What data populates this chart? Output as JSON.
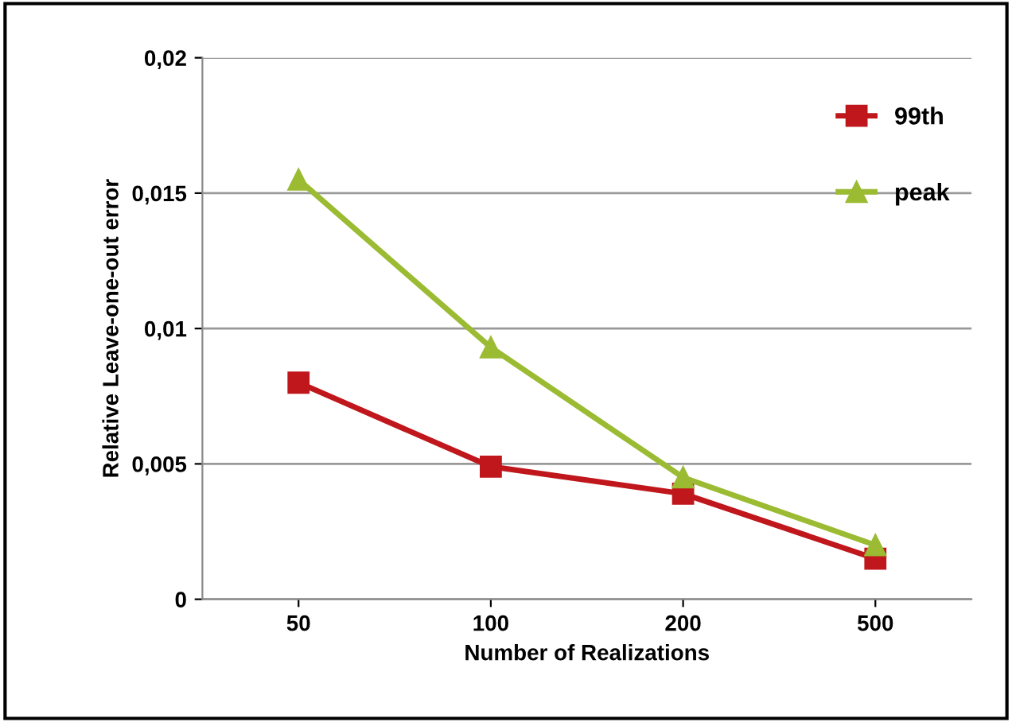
{
  "chart_data": {
    "type": "line",
    "xlabel": "Number of Realizations",
    "ylabel": "Relative Leave-one-out error",
    "categories": [
      "50",
      "100",
      "200",
      "500"
    ],
    "series": [
      {
        "name": "99th",
        "color": "#c0171c",
        "marker": "square",
        "values": [
          0.008,
          0.0049,
          0.0039,
          0.0015
        ]
      },
      {
        "name": "peak",
        "color": "#9bbb33",
        "marker": "triangle",
        "values": [
          0.0155,
          0.0093,
          0.0045,
          0.002
        ]
      }
    ],
    "ylim": [
      0,
      0.02
    ],
    "yticks": [
      {
        "value": 0,
        "label": "0"
      },
      {
        "value": 0.005,
        "label": "0,005"
      },
      {
        "value": 0.01,
        "label": "0,01"
      },
      {
        "value": 0.015,
        "label": "0,015"
      },
      {
        "value": 0.02,
        "label": "0,02"
      }
    ],
    "grid": "y",
    "legend": "top right",
    "line_style": "solid"
  }
}
